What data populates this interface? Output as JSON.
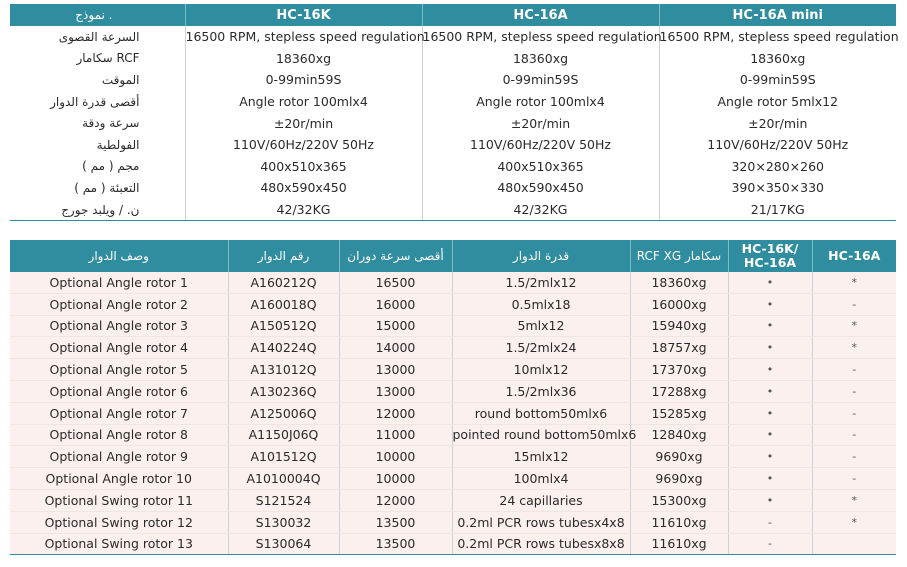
{
  "spec_table": {
    "headers": [
      "نموذج .",
      "HC-16K",
      "HC-16A",
      "HC-16A mini"
    ],
    "rows": [
      {
        "label": "السرعة القصوى",
        "values": [
          "16500 RPM, stepless speed regulation",
          "16500 RPM, stepless speed regulation",
          "16500 RPM, stepless speed regulation"
        ]
      },
      {
        "label": "سكامار RCF",
        "values": [
          "18360xg",
          "18360xg",
          "18360xg"
        ]
      },
      {
        "label": "الموقت",
        "values": [
          "0-99min59S",
          "0-99min59S",
          "0-99min59S"
        ]
      },
      {
        "label": "أقصى قدرة الدوار",
        "values": [
          "Angle rotor  100mlx4",
          "Angle rotor  100mlx4",
          "Angle rotor  5mlx12"
        ]
      },
      {
        "label": "سرعة ودقة",
        "values": [
          "±20r/min",
          "±20r/min",
          "±20r/min"
        ]
      },
      {
        "label": "الفولطية",
        "values": [
          "110V/60Hz/220V 50Hz",
          "110V/60Hz/220V 50Hz",
          "110V/60Hz/220V 50Hz"
        ]
      },
      {
        "label": "( مم ) مجم",
        "values": [
          "400x510x365",
          "400x510x365",
          "320×280×260"
        ]
      },
      {
        "label": "التعبئة ( مم )",
        "values": [
          "480x590x450",
          "480x590x450",
          "390×350×330"
        ]
      },
      {
        "label": "ن. / ويلبد جورج",
        "values": [
          "42/32KG",
          "42/32KG",
          "21/17KG"
        ]
      }
    ]
  },
  "rotor_table": {
    "headers": {
      "description": "وصف الدوار",
      "number": "رقم الدوار",
      "max_speed": "أقصى سرعة دوران",
      "capacity": "قدرة الدوار",
      "rcf": "RCF XG سكامار",
      "hc16k_line1": "HC-16K/",
      "hc16k_line2": "HC-16A",
      "hc16a": "HC-16A"
    },
    "rows": [
      {
        "name": "Optional Angle rotor 1",
        "code": "A160212Q",
        "speed": "16500",
        "capacity": "1.5/2mlx12",
        "rcf": "18360xg",
        "k": "•",
        "a": "*"
      },
      {
        "name": "Optional Angle rotor 2",
        "code": "A160018Q",
        "speed": "16000",
        "capacity": "0.5mlx18",
        "rcf": "16000xg",
        "k": "•",
        "a": "-"
      },
      {
        "name": "Optional Angle rotor 3",
        "code": "A150512Q",
        "speed": "15000",
        "capacity": "5mlx12",
        "rcf": "15940xg",
        "k": "•",
        "a": "*"
      },
      {
        "name": "Optional Angle rotor 4",
        "code": "A140224Q",
        "speed": "14000",
        "capacity": "1.5/2mlx24",
        "rcf": "18757xg",
        "k": "•",
        "a": "*"
      },
      {
        "name": "Optional Angle rotor 5",
        "code": "A131012Q",
        "speed": "13000",
        "capacity": "10mlx12",
        "rcf": "17370xg",
        "k": "•",
        "a": "-"
      },
      {
        "name": "Optional Angle rotor 6",
        "code": "A130236Q",
        "speed": "13000",
        "capacity": "1.5/2mlx36",
        "rcf": "17288xg",
        "k": "•",
        "a": "-"
      },
      {
        "name": "Optional Angle rotor 7",
        "code": "A125006Q",
        "speed": "12000",
        "capacity": "round bottom50mlx6",
        "rcf": "15285xg",
        "k": "•",
        "a": "-"
      },
      {
        "name": "Optional Angle rotor 8",
        "code": "A1150J06Q",
        "speed": "11000",
        "capacity": "pointed round bottom50mlx6",
        "rcf": "12840xg",
        "k": "•",
        "a": "-"
      },
      {
        "name": "Optional Angle rotor 9",
        "code": "A101512Q",
        "speed": "10000",
        "capacity": "15mlx12",
        "rcf": "9690xg",
        "k": "•",
        "a": "-"
      },
      {
        "name": "Optional Angle rotor 10",
        "code": "A1010004Q",
        "speed": "10000",
        "capacity": "100mlx4",
        "rcf": "9690xg",
        "k": "•",
        "a": "-"
      },
      {
        "name": "Optional Swing rotor 11",
        "code": "S121524",
        "speed": "12000",
        "capacity": "24 capillaries",
        "rcf": "15300xg",
        "k": "•",
        "a": "*"
      },
      {
        "name": "Optional Swing rotor 12",
        "code": "S130032",
        "speed": "13500",
        "capacity": "0.2ml PCR rows tubesx4x8",
        "rcf": "11610xg",
        "k": "-",
        "a": "*"
      },
      {
        "name": "Optional Swing rotor 13",
        "code": "S130064",
        "speed": "13500",
        "capacity": "0.2ml PCR rows tubesx8x8",
        "rcf": "11610xg",
        "k": "-",
        "a": ""
      }
    ]
  },
  "colors": {
    "header_bg": "#2f8d9f",
    "row_tint": "#fbf0ed"
  }
}
